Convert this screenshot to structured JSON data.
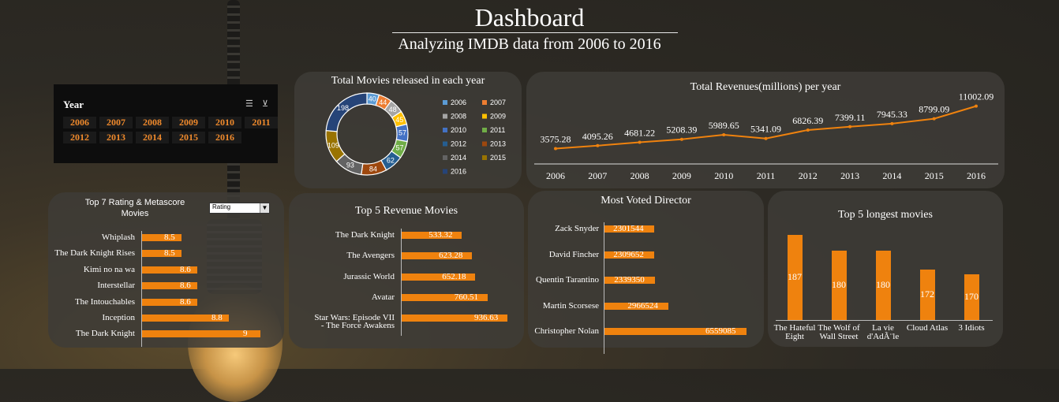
{
  "header": {
    "title": "Dashboard",
    "subtitle": "Analyzing IMDB data from 2006 to 2016"
  },
  "slicer": {
    "title": "Year",
    "icons": [
      "multi-select-icon",
      "clear-filter-icon"
    ],
    "years": [
      "2006",
      "2007",
      "2008",
      "2009",
      "2010",
      "2011",
      "2012",
      "2013",
      "2014",
      "2015",
      "2016"
    ]
  },
  "colors": {
    "accent": "#ef820e"
  },
  "chart_data": [
    {
      "type": "pie",
      "title": "Total Movies released in each year",
      "categories": [
        "2006",
        "2007",
        "2008",
        "2009",
        "2010",
        "2011",
        "2012",
        "2013",
        "2014",
        "2015",
        "2016"
      ],
      "values": [
        40,
        44,
        48,
        45,
        57,
        57,
        62,
        84,
        93,
        109,
        198
      ],
      "colors": [
        "#5b9bd5",
        "#ed7d31",
        "#a5a5a5",
        "#ffc000",
        "#4472c4",
        "#70ad47",
        "#255e91",
        "#9e480e",
        "#636363",
        "#997300",
        "#264478"
      ],
      "legend": "right"
    },
    {
      "type": "line",
      "title": "Total Revenues(millions) per year",
      "x": [
        "2006",
        "2007",
        "2008",
        "2009",
        "2010",
        "2011",
        "2012",
        "2013",
        "2014",
        "2015",
        "2016"
      ],
      "values": [
        3575.28,
        4095.26,
        4681.22,
        5208.39,
        5989.65,
        5341.09,
        6826.39,
        7399.11,
        7945.33,
        8799.09,
        11002.09
      ],
      "ylim": [
        0,
        12000
      ]
    },
    {
      "type": "bar",
      "title": "Top 7 Rating & Metascore Movies",
      "dropdown": "Rating",
      "categories": [
        "Whiplash",
        "The Dark Knight Rises",
        "Kimi no na wa",
        "Interstellar",
        "The Intouchables",
        "Inception",
        "The Dark Knight"
      ],
      "values": [
        8.5,
        8.5,
        8.6,
        8.6,
        8.6,
        8.8,
        9
      ],
      "labels": [
        "8.5",
        "8.5",
        "8.6",
        "8.6",
        "8.6",
        "8.8",
        "9"
      ]
    },
    {
      "type": "bar",
      "title": "Top 5 Revenue Movies",
      "categories": [
        "The Dark Knight",
        "The Avengers",
        "Jurassic World",
        "Avatar",
        "Star Wars: Episode VII - The Force Awakens"
      ],
      "values": [
        533.32,
        623.28,
        652.18,
        760.51,
        936.63
      ]
    },
    {
      "type": "bar",
      "title": "Most Voted Director",
      "categories": [
        "Zack Snyder",
        "David Fincher",
        "Quentin Tarantino",
        "Martin Scorsese",
        "Christopher Nolan"
      ],
      "values": [
        2301544,
        2309652,
        2339350,
        2966524,
        6559085
      ]
    },
    {
      "type": "bar",
      "title": "Top 5 longest movies",
      "categories": [
        "The Hateful Eight",
        "The Wolf of Wall Street",
        "La vie d'AdÃ¨le",
        "Cloud Atlas",
        "3 Idiots"
      ],
      "values": [
        187,
        180,
        180,
        172,
        170
      ]
    }
  ]
}
